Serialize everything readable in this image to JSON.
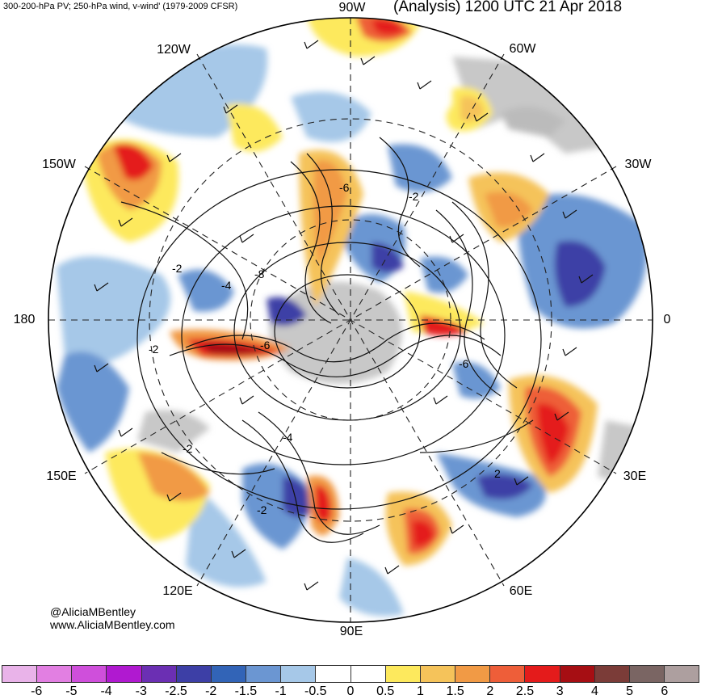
{
  "header": {
    "left_text": "300-200-hPa PV; 250-hPa wind, v-wind' (1979-2009 CFSR)",
    "right_text": "(Analysis) 1200 UTC 21 Apr 2018"
  },
  "longitude_labels": {
    "lon_90w": "90W",
    "lon_120w": "120W",
    "lon_60w": "60W",
    "lon_150w": "150W",
    "lon_30w": "30W",
    "lon_180": "180",
    "lon_0": "0",
    "lon_150e": "150E",
    "lon_30e": "30E",
    "lon_120e": "120E",
    "lon_60e": "60E",
    "lon_90e": "90E"
  },
  "contour_labels": {
    "c1": "-6",
    "c2": "-2",
    "c3": "-2",
    "c4": "-4",
    "c5": "-8",
    "c6": "-6",
    "c7": "-2",
    "c8": "-6",
    "c9": "-4",
    "c10": "-2",
    "c11": "-2",
    "c12": "2"
  },
  "credits": {
    "handle": "@AliciaMBentley",
    "website": "www.AliciaMBentley.com"
  },
  "colorbar": {
    "colors": [
      "#e9b3e9",
      "#e27fe2",
      "#cf4fdb",
      "#b019d0",
      "#6b2fb3",
      "#3d3fa6",
      "#3264b7",
      "#6b96d2",
      "#a6c8e8",
      "#ffffff",
      "#ffffff",
      "#fde95d",
      "#f5c35a",
      "#f19a45",
      "#ee5e39",
      "#e41b1b",
      "#a60e13",
      "#7b3c38",
      "#7a6563",
      "#ad9f9f"
    ],
    "ticks": [
      "-6",
      "-5",
      "-4",
      "-3",
      "-2.5",
      "-2",
      "-1.5",
      "-1",
      "-0.5",
      "0",
      "0.5",
      "1",
      "1.5",
      "2",
      "2.5",
      "3",
      "4",
      "5",
      "6"
    ]
  },
  "map_colors": {
    "red": "#e41b1b",
    "orange": "#f19a45",
    "yellow": "#fde95d",
    "light_blue": "#a6c8e8",
    "mid_blue": "#6b96d2",
    "dark_blue": "#3d3fa6",
    "gray": "#c8c8c8"
  }
}
